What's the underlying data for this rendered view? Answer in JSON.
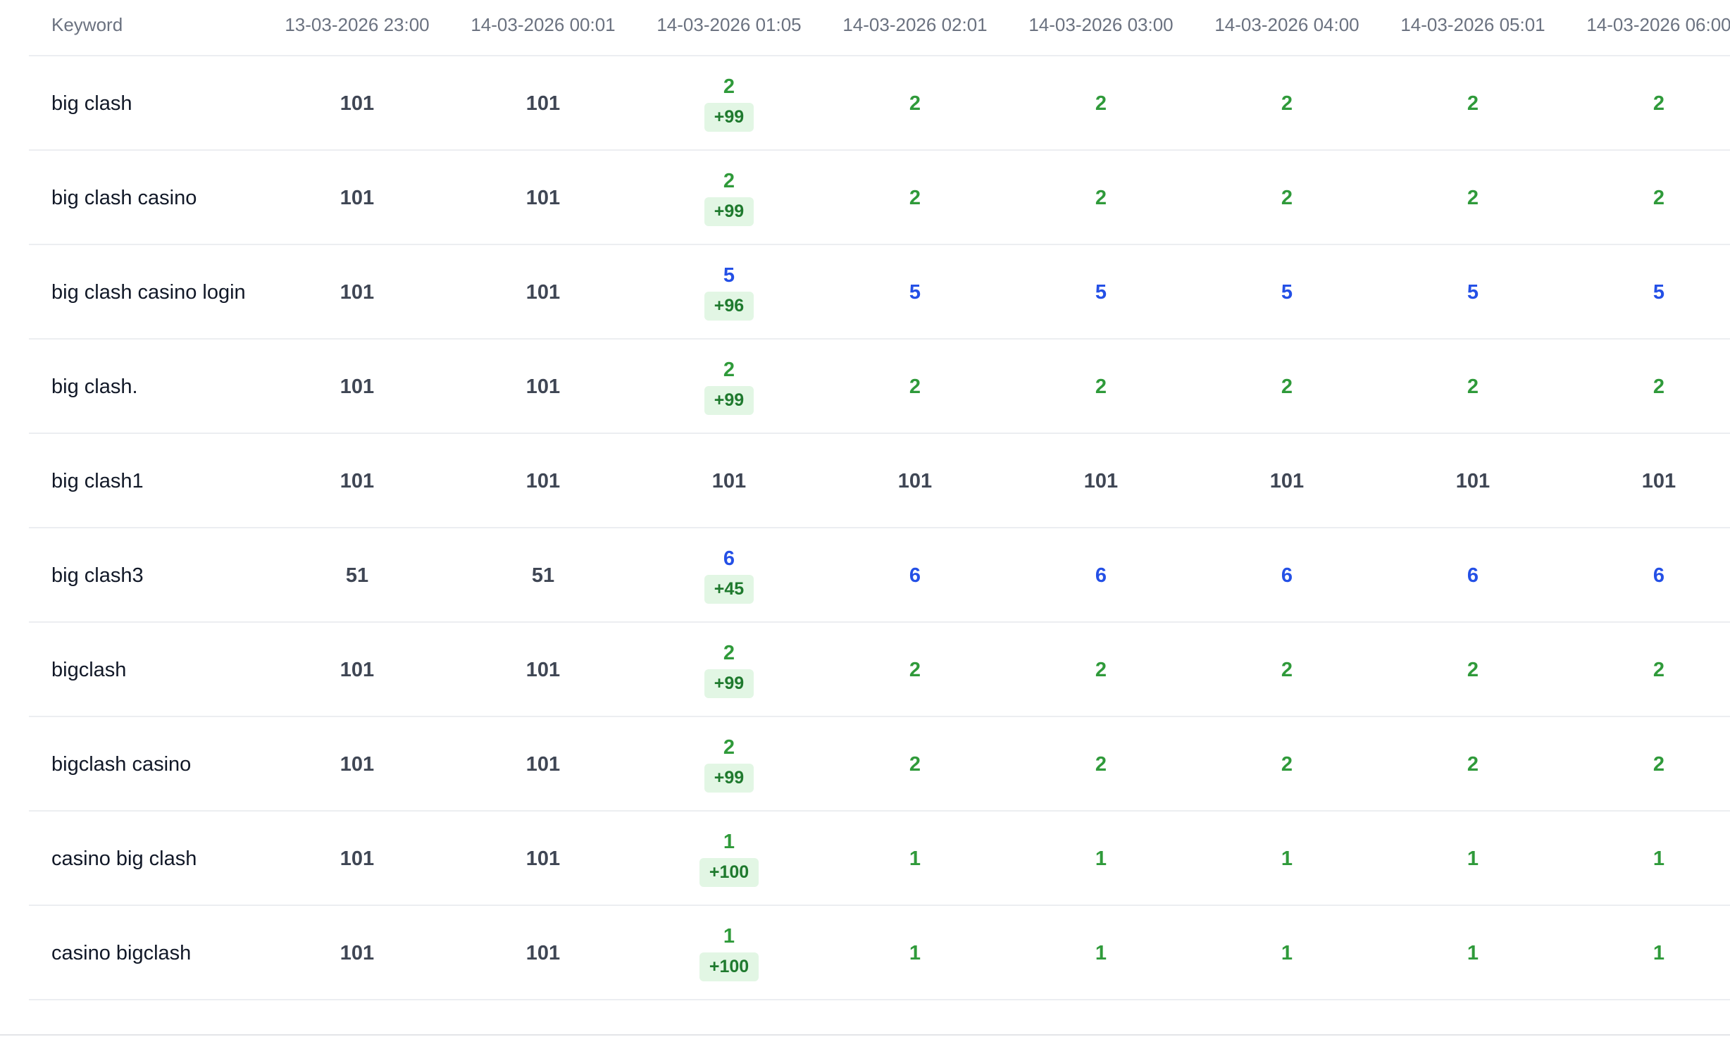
{
  "table": {
    "header": [
      "Keyword",
      "13-03-2026 23:00",
      "14-03-2026 00:01",
      "14-03-2026 01:05",
      "14-03-2026 02:01",
      "14-03-2026 03:00",
      "14-03-2026 04:00",
      "14-03-2026 05:01",
      "14-03-2026 06:00"
    ],
    "rows": [
      {
        "keyword": "big clash",
        "cells": [
          {
            "rank": "101"
          },
          {
            "rank": "101"
          },
          {
            "rank": "2",
            "change": "+99"
          },
          {
            "rank": "2"
          },
          {
            "rank": "2"
          },
          {
            "rank": "2"
          },
          {
            "rank": "2"
          },
          {
            "rank": "2"
          }
        ]
      },
      {
        "keyword": "big clash casino",
        "cells": [
          {
            "rank": "101"
          },
          {
            "rank": "101"
          },
          {
            "rank": "2",
            "change": "+99"
          },
          {
            "rank": "2"
          },
          {
            "rank": "2"
          },
          {
            "rank": "2"
          },
          {
            "rank": "2"
          },
          {
            "rank": "2"
          }
        ]
      },
      {
        "keyword": "big clash casino login",
        "cells": [
          {
            "rank": "101"
          },
          {
            "rank": "101"
          },
          {
            "rank": "5",
            "change": "+96"
          },
          {
            "rank": "5"
          },
          {
            "rank": "5"
          },
          {
            "rank": "5"
          },
          {
            "rank": "5"
          },
          {
            "rank": "5"
          }
        ]
      },
      {
        "keyword": "big clash.",
        "cells": [
          {
            "rank": "101"
          },
          {
            "rank": "101"
          },
          {
            "rank": "2",
            "change": "+99"
          },
          {
            "rank": "2"
          },
          {
            "rank": "2"
          },
          {
            "rank": "2"
          },
          {
            "rank": "2"
          },
          {
            "rank": "2"
          }
        ]
      },
      {
        "keyword": "big clash1",
        "cells": [
          {
            "rank": "101"
          },
          {
            "rank": "101"
          },
          {
            "rank": "101"
          },
          {
            "rank": "101"
          },
          {
            "rank": "101"
          },
          {
            "rank": "101"
          },
          {
            "rank": "101"
          },
          {
            "rank": "101"
          }
        ]
      },
      {
        "keyword": "big clash3",
        "cells": [
          {
            "rank": "51"
          },
          {
            "rank": "51"
          },
          {
            "rank": "6",
            "change": "+45"
          },
          {
            "rank": "6"
          },
          {
            "rank": "6"
          },
          {
            "rank": "6"
          },
          {
            "rank": "6"
          },
          {
            "rank": "6"
          }
        ]
      },
      {
        "keyword": "bigclash",
        "cells": [
          {
            "rank": "101"
          },
          {
            "rank": "101"
          },
          {
            "rank": "2",
            "change": "+99"
          },
          {
            "rank": "2"
          },
          {
            "rank": "2"
          },
          {
            "rank": "2"
          },
          {
            "rank": "2"
          },
          {
            "rank": "2"
          }
        ]
      },
      {
        "keyword": "bigclash casino",
        "cells": [
          {
            "rank": "101"
          },
          {
            "rank": "101"
          },
          {
            "rank": "2",
            "change": "+99"
          },
          {
            "rank": "2"
          },
          {
            "rank": "2"
          },
          {
            "rank": "2"
          },
          {
            "rank": "2"
          },
          {
            "rank": "2"
          }
        ]
      },
      {
        "keyword": "casino big clash",
        "cells": [
          {
            "rank": "101"
          },
          {
            "rank": "101"
          },
          {
            "rank": "1",
            "change": "+100"
          },
          {
            "rank": "1"
          },
          {
            "rank": "1"
          },
          {
            "rank": "1"
          },
          {
            "rank": "1"
          },
          {
            "rank": "1"
          }
        ]
      },
      {
        "keyword": "casino bigclash",
        "cells": [
          {
            "rank": "101"
          },
          {
            "rank": "101"
          },
          {
            "rank": "1",
            "change": "+100"
          },
          {
            "rank": "1"
          },
          {
            "rank": "1"
          },
          {
            "rank": "1"
          },
          {
            "rank": "1"
          },
          {
            "rank": "1"
          }
        ]
      }
    ]
  }
}
